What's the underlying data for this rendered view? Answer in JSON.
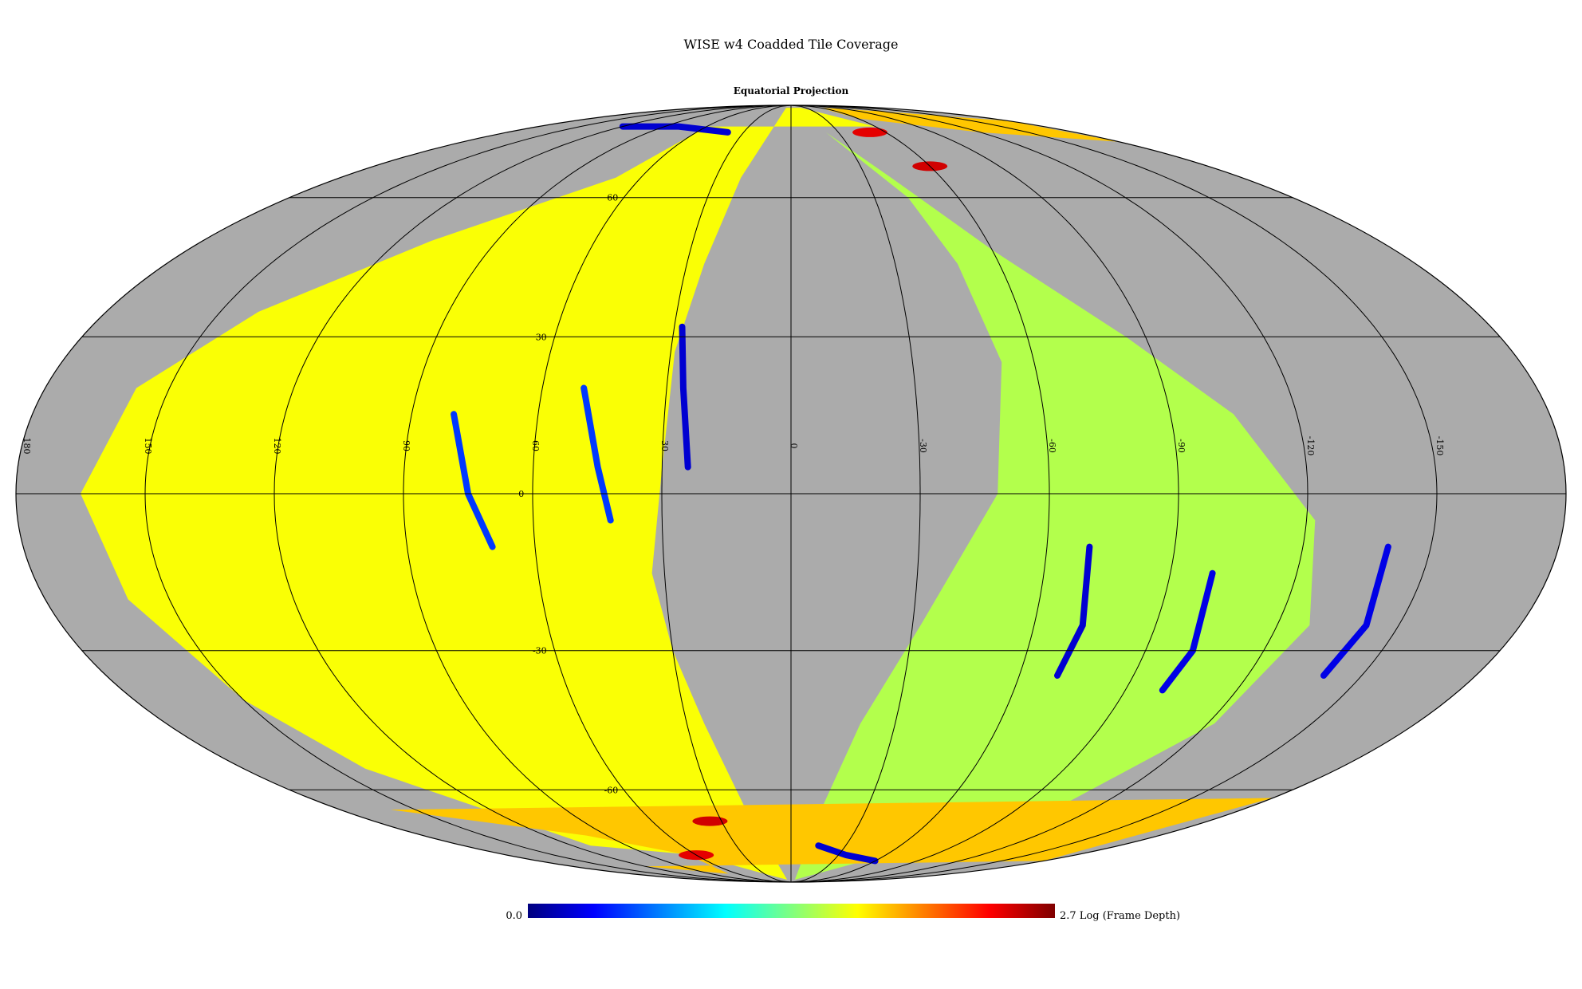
{
  "figure": {
    "title": "WISE w4 Coadded Tile Coverage",
    "subtitle": "Equatorial Projection"
  },
  "map": {
    "projection": "Mollweide",
    "coordinate_system": "Equatorial",
    "ra_center": 0,
    "ra_direction": "increasing-left",
    "background_color": "#ababab",
    "longitude_labels": [
      "180",
      "150",
      "120",
      "90",
      "60",
      "30",
      "0",
      "-30",
      "-60",
      "-90",
      "-120",
      "-150"
    ],
    "latitude_labels": [
      "60",
      "30",
      "0",
      "-30",
      "-60"
    ],
    "coverage_regions": [
      {
        "name": "east-lobe",
        "level": 0.62,
        "boundary_radec": [
          [
            60,
            80
          ],
          [
            70,
            65
          ],
          [
            110,
            50
          ],
          [
            140,
            35
          ],
          [
            158,
            20
          ],
          [
            165,
            0
          ],
          [
            160,
            -20
          ],
          [
            150,
            -40
          ],
          [
            140,
            -55
          ],
          [
            110,
            -75
          ],
          [
            60,
            -78
          ],
          [
            30,
            -85
          ],
          [
            8,
            -88
          ],
          [
            18,
            -65
          ],
          [
            25,
            -45
          ],
          [
            30,
            -30
          ],
          [
            33,
            -15
          ],
          [
            30,
            5
          ],
          [
            29,
            27
          ],
          [
            25,
            45
          ],
          [
            20,
            65
          ],
          [
            10,
            88
          ],
          [
            -20,
            88
          ],
          [
            -60,
            80
          ]
        ]
      },
      {
        "name": "west-lobe",
        "level": 0.55,
        "boundary_radec": [
          [
            -22,
            78
          ],
          [
            -40,
            65
          ],
          [
            -60,
            48
          ],
          [
            -85,
            30
          ],
          [
            -105,
            15
          ],
          [
            -122,
            -5
          ],
          [
            -128,
            -25
          ],
          [
            -122,
            -45
          ],
          [
            -105,
            -65
          ],
          [
            -60,
            -78
          ],
          [
            -8,
            -88
          ],
          [
            -12,
            -65
          ],
          [
            -20,
            -45
          ],
          [
            -32,
            -25
          ],
          [
            -48,
            0
          ],
          [
            -52,
            25
          ],
          [
            -48,
            45
          ],
          [
            -42,
            60
          ]
        ]
      },
      {
        "name": "south-east-strip",
        "level": 0.68,
        "boundary_radec": [
          [
            65,
            -78
          ],
          [
            100,
            -72
          ],
          [
            160,
            -65
          ],
          [
            180,
            -62
          ],
          [
            180,
            -80
          ],
          [
            120,
            -82
          ],
          [
            70,
            -85
          ]
        ]
      },
      {
        "name": "north-west-strip",
        "level": 0.68,
        "boundary_radec": [
          [
            -60,
            83
          ],
          [
            -120,
            78
          ],
          [
            -180,
            75
          ],
          [
            -180,
            82
          ],
          [
            -120,
            86
          ],
          [
            -60,
            88
          ]
        ]
      }
    ],
    "highlight_tracks": [
      {
        "name": "track-1",
        "level": 0.08,
        "points": [
          [
            28,
            32
          ],
          [
            26,
            20
          ],
          [
            24,
            5
          ]
        ]
      },
      {
        "name": "track-2",
        "level": 0.18,
        "points": [
          [
            50,
            20
          ],
          [
            45,
            5
          ],
          [
            42,
            -5
          ]
        ]
      },
      {
        "name": "track-3",
        "level": 0.18,
        "points": [
          [
            80,
            15
          ],
          [
            75,
            0
          ],
          [
            70,
            -10
          ]
        ]
      },
      {
        "name": "track-4",
        "level": 0.08,
        "points": [
          [
            -70,
            -10
          ],
          [
            -72,
            -25
          ],
          [
            -70,
            -35
          ]
        ]
      },
      {
        "name": "track-5",
        "level": 0.1,
        "points": [
          [
            -100,
            -15
          ],
          [
            -102,
            -30
          ],
          [
            -100,
            -38
          ]
        ]
      },
      {
        "name": "track-6",
        "level": 0.1,
        "points": [
          [
            -140,
            -10
          ],
          [
            -142,
            -25
          ],
          [
            -140,
            -35
          ]
        ]
      },
      {
        "name": "track-7",
        "level": 0.08,
        "points": [
          [
            40,
            78
          ],
          [
            80,
            80
          ],
          [
            120,
            80
          ]
        ]
      },
      {
        "name": "track-8",
        "level": 0.08,
        "points": [
          [
            -15,
            -75
          ],
          [
            -35,
            -78
          ],
          [
            -60,
            -80
          ]
        ]
      }
    ],
    "hot_spots": [
      {
        "name": "hot-spot-north-1",
        "level": 0.9,
        "ra": -50,
        "dec": 78
      },
      {
        "name": "hot-spot-north-2",
        "level": 0.92,
        "ra": -60,
        "dec": 68
      },
      {
        "name": "hot-spot-south-1",
        "level": 0.92,
        "ra": 35,
        "dec": -68
      },
      {
        "name": "hot-spot-south-2",
        "level": 0.9,
        "ra": 60,
        "dec": -78
      }
    ]
  },
  "colorbar": {
    "min_label": "0.0",
    "max_label": "2.7 Log (Frame Depth)",
    "min": 0.0,
    "max": 2.7,
    "colormap": "jet",
    "stops": [
      "#00007f",
      "#0000ff",
      "#007fff",
      "#00ffff",
      "#7fff7f",
      "#ffff00",
      "#ff7f00",
      "#ff0000",
      "#7f0000"
    ]
  }
}
